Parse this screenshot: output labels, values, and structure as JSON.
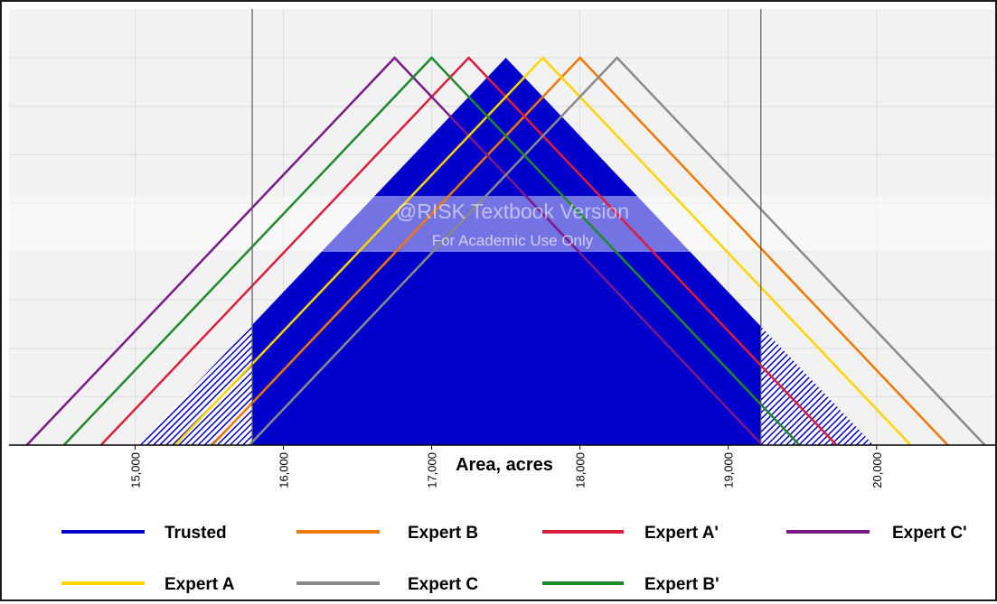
{
  "chart_data": {
    "type": "line",
    "xlabel": "Area, acres",
    "xlim": [
      14150,
      20800
    ],
    "ylim": [
      0,
      1
    ],
    "grid": true,
    "legend_position": "bottom",
    "x_ticks": [
      {
        "value": 15000,
        "label": "15,000"
      },
      {
        "value": 16000,
        "label": "16,000"
      },
      {
        "value": 17000,
        "label": "17,000"
      },
      {
        "value": 18000,
        "label": "18,000"
      },
      {
        "value": 19000,
        "label": "19,000"
      },
      {
        "value": 20000,
        "label": "20,000"
      }
    ],
    "markers": [
      15790,
      19220
    ],
    "watermark": {
      "line1": "@RISK Textbook Version",
      "line2": "For Academic Use Only"
    },
    "series": [
      {
        "name": "Trusted",
        "color": "#0000cc",
        "kind": "area",
        "min": 15020,
        "mode": 17500,
        "max": 19980
      },
      {
        "name": "Expert B",
        "color": "#f07800",
        "kind": "line",
        "min": 15520,
        "mode": 18000,
        "max": 20480
      },
      {
        "name": "Expert A'",
        "color": "#dc1e3c",
        "kind": "line",
        "min": 14770,
        "mode": 17250,
        "max": 19730
      },
      {
        "name": "Expert C'",
        "color": "#7a1a8a",
        "kind": "line",
        "min": 14270,
        "mode": 16750,
        "max": 19230
      },
      {
        "name": "Expert A",
        "color": "#ffd400",
        "kind": "line",
        "min": 15270,
        "mode": 17750,
        "max": 20230
      },
      {
        "name": "Expert C",
        "color": "#8a8a8a",
        "kind": "line",
        "min": 15770,
        "mode": 18250,
        "max": 20730
      },
      {
        "name": "Expert B'",
        "color": "#1f8a2a",
        "kind": "line",
        "min": 14520,
        "mode": 17000,
        "max": 19480
      }
    ]
  }
}
